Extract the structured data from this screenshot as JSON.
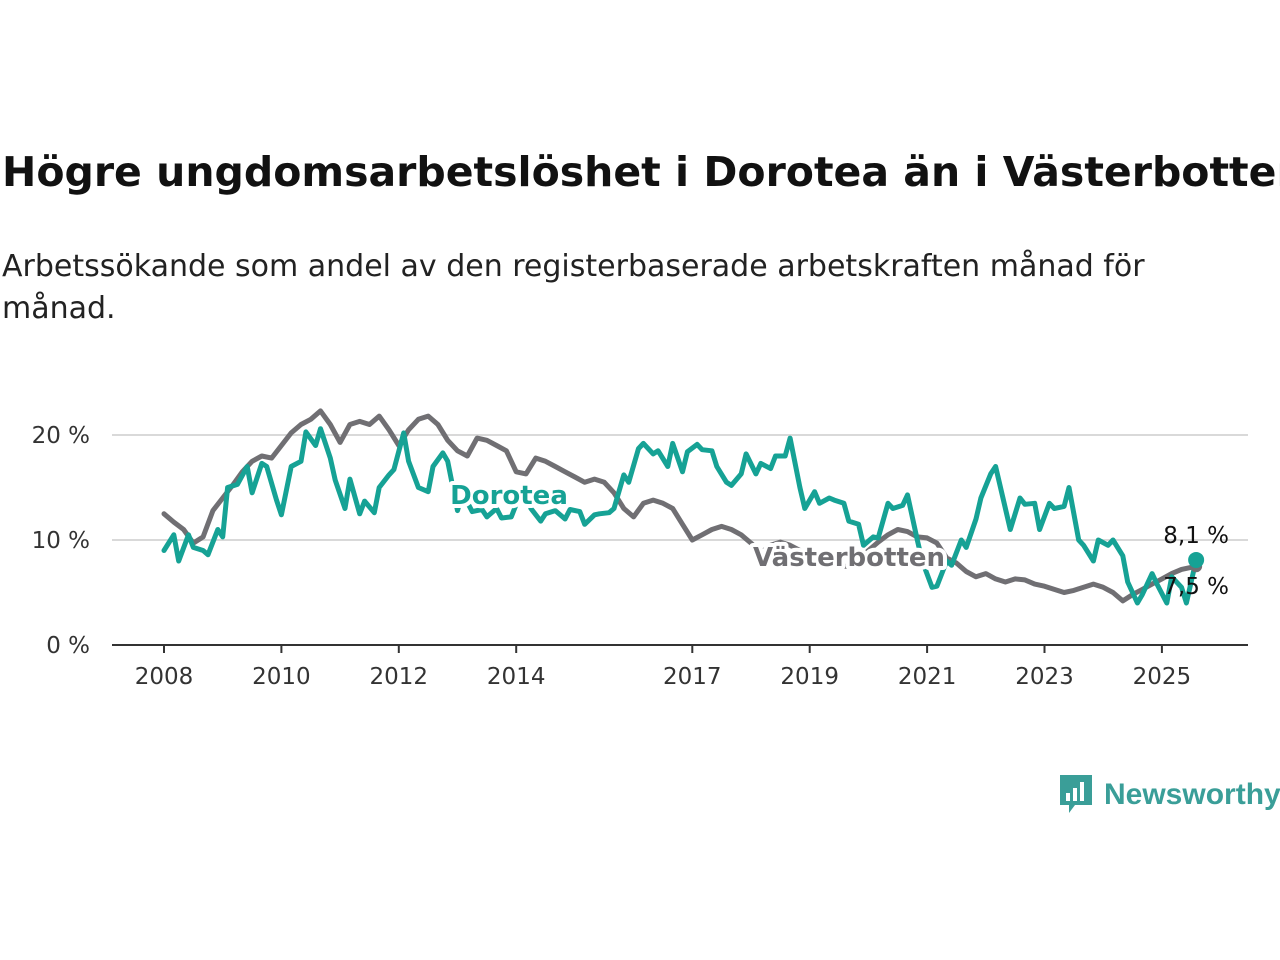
{
  "title": "Högre ungdomsarbetslöshet i Dorotea än i Västerbotten",
  "subtitle": "Arbetssökande som andel av den registerbaserade arbetskraften månad för månad.",
  "logo": {
    "text": "Newsworthy",
    "icon": "newsworthy-chart-bubble-icon",
    "color": "#3a9e98"
  },
  "chart_data": {
    "type": "line",
    "title": "Högre ungdomsarbetslöshet i Dorotea än i Västerbotten",
    "subtitle": "Arbetssökande som andel av den registerbaserade arbetskraften månad för månad.",
    "xlabel": "",
    "ylabel": "",
    "x_range": [
      "2008-01",
      "2025-08"
    ],
    "x_ticks": [
      "2008",
      "2010",
      "2012",
      "2014",
      "2017",
      "2019",
      "2021",
      "2023",
      "2025"
    ],
    "y_ticks": [
      0,
      10,
      20
    ],
    "y_tick_labels": [
      "0 %",
      "10 %",
      "20 %"
    ],
    "ylim": [
      0,
      22
    ],
    "grid": "horizontal",
    "legend": "inline labels",
    "end_labels": {
      "Dorotea": "8,1 %",
      "Västerbotten": "7,5 %"
    },
    "series": [
      {
        "name": "Dorotea",
        "color": "#16a295",
        "values": [
          [
            "2008-01",
            9.0
          ],
          [
            "2008-03",
            10.5
          ],
          [
            "2008-04",
            8.0
          ],
          [
            "2008-06",
            10.5
          ],
          [
            "2008-07",
            9.3
          ],
          [
            "2008-09",
            9.0
          ],
          [
            "2008-10",
            8.6
          ],
          [
            "2008-12",
            11.0
          ],
          [
            "2009-01",
            10.3
          ],
          [
            "2009-02",
            15.0
          ],
          [
            "2009-04",
            15.3
          ],
          [
            "2009-06",
            17.0
          ],
          [
            "2009-07",
            14.5
          ],
          [
            "2009-09",
            17.3
          ],
          [
            "2009-10",
            17.0
          ],
          [
            "2009-12",
            13.8
          ],
          [
            "2010-01",
            12.4
          ],
          [
            "2010-03",
            17.0
          ],
          [
            "2010-05",
            17.5
          ],
          [
            "2010-06",
            20.3
          ],
          [
            "2010-08",
            19.0
          ],
          [
            "2010-09",
            20.6
          ],
          [
            "2010-11",
            17.8
          ],
          [
            "2010-12",
            15.7
          ],
          [
            "2011-02",
            13.0
          ],
          [
            "2011-03",
            15.8
          ],
          [
            "2011-05",
            12.5
          ],
          [
            "2011-06",
            13.7
          ],
          [
            "2011-08",
            12.6
          ],
          [
            "2011-09",
            15.0
          ],
          [
            "2011-11",
            16.2
          ],
          [
            "2011-12",
            16.7
          ],
          [
            "2012-02",
            20.2
          ],
          [
            "2012-03",
            17.5
          ],
          [
            "2012-05",
            15.0
          ],
          [
            "2012-07",
            14.6
          ],
          [
            "2012-08",
            17.0
          ],
          [
            "2012-10",
            18.3
          ],
          [
            "2012-11",
            17.5
          ],
          [
            "2013-01",
            12.8
          ],
          [
            "2013-02",
            14.5
          ],
          [
            "2013-04",
            12.7
          ],
          [
            "2013-06",
            12.9
          ],
          [
            "2013-07",
            12.2
          ],
          [
            "2013-09",
            13.0
          ],
          [
            "2013-10",
            12.1
          ],
          [
            "2013-12",
            12.2
          ],
          [
            "2014-01",
            13.4
          ],
          [
            "2014-03",
            15.0
          ],
          [
            "2014-04",
            13.0
          ],
          [
            "2014-06",
            11.8
          ],
          [
            "2014-07",
            12.5
          ],
          [
            "2014-09",
            12.8
          ],
          [
            "2014-11",
            12.0
          ],
          [
            "2014-12",
            12.9
          ],
          [
            "2015-02",
            12.7
          ],
          [
            "2015-03",
            11.5
          ],
          [
            "2015-05",
            12.4
          ],
          [
            "2015-06",
            12.5
          ],
          [
            "2015-08",
            12.6
          ],
          [
            "2015-09",
            13.0
          ],
          [
            "2015-11",
            16.2
          ],
          [
            "2015-12",
            15.5
          ],
          [
            "2016-02",
            18.7
          ],
          [
            "2016-03",
            19.2
          ],
          [
            "2016-05",
            18.2
          ],
          [
            "2016-06",
            18.5
          ],
          [
            "2016-08",
            17.0
          ],
          [
            "2016-09",
            19.2
          ],
          [
            "2016-11",
            16.5
          ],
          [
            "2016-12",
            18.4
          ],
          [
            "2017-02",
            19.1
          ],
          [
            "2017-03",
            18.6
          ],
          [
            "2017-05",
            18.5
          ],
          [
            "2017-06",
            17.0
          ],
          [
            "2017-08",
            15.5
          ],
          [
            "2017-09",
            15.2
          ],
          [
            "2017-11",
            16.3
          ],
          [
            "2017-12",
            18.2
          ],
          [
            "2018-02",
            16.3
          ],
          [
            "2018-03",
            17.3
          ],
          [
            "2018-05",
            16.8
          ],
          [
            "2018-06",
            18.0
          ],
          [
            "2018-08",
            18.0
          ],
          [
            "2018-09",
            19.7
          ],
          [
            "2018-11",
            15.0
          ],
          [
            "2018-12",
            13.0
          ],
          [
            "2019-02",
            14.6
          ],
          [
            "2019-03",
            13.5
          ],
          [
            "2019-05",
            14.0
          ],
          [
            "2019-06",
            13.8
          ],
          [
            "2019-08",
            13.5
          ],
          [
            "2019-09",
            11.8
          ],
          [
            "2019-11",
            11.5
          ],
          [
            "2019-12",
            9.5
          ],
          [
            "2020-02",
            10.3
          ],
          [
            "2020-03",
            10.2
          ],
          [
            "2020-05",
            13.5
          ],
          [
            "2020-06",
            13.0
          ],
          [
            "2020-08",
            13.3
          ],
          [
            "2020-09",
            14.3
          ],
          [
            "2020-11",
            10.0
          ],
          [
            "2020-12",
            8.0
          ],
          [
            "2021-02",
            5.5
          ],
          [
            "2021-03",
            5.6
          ],
          [
            "2021-05",
            8.0
          ],
          [
            "2021-06",
            7.6
          ],
          [
            "2021-08",
            10.0
          ],
          [
            "2021-09",
            9.3
          ],
          [
            "2021-11",
            12.0
          ],
          [
            "2021-12",
            14.0
          ],
          [
            "2022-02",
            16.3
          ],
          [
            "2022-03",
            17.0
          ],
          [
            "2022-05",
            13.0
          ],
          [
            "2022-06",
            11.0
          ],
          [
            "2022-08",
            14.0
          ],
          [
            "2022-09",
            13.4
          ],
          [
            "2022-11",
            13.5
          ],
          [
            "2022-12",
            11.0
          ],
          [
            "2023-02",
            13.5
          ],
          [
            "2023-03",
            13.0
          ],
          [
            "2023-05",
            13.2
          ],
          [
            "2023-06",
            15.0
          ],
          [
            "2023-08",
            10.0
          ],
          [
            "2023-09",
            9.5
          ],
          [
            "2023-11",
            8.0
          ],
          [
            "2023-12",
            10.0
          ],
          [
            "2024-02",
            9.5
          ],
          [
            "2024-03",
            10.0
          ],
          [
            "2024-05",
            8.5
          ],
          [
            "2024-06",
            6.0
          ],
          [
            "2024-08",
            4.0
          ],
          [
            "2024-09",
            4.8
          ],
          [
            "2024-11",
            6.8
          ],
          [
            "2024-12",
            5.8
          ],
          [
            "2025-02",
            4.0
          ],
          [
            "2025-03",
            6.5
          ],
          [
            "2025-05",
            5.5
          ],
          [
            "2025-06",
            4.0
          ],
          [
            "2025-08",
            8.1
          ]
        ]
      },
      {
        "name": "Västerbotten",
        "color": "#706f73",
        "values": [
          [
            "2008-01",
            12.5
          ],
          [
            "2008-03",
            11.7
          ],
          [
            "2008-05",
            11.0
          ],
          [
            "2008-07",
            9.7
          ],
          [
            "2008-09",
            10.3
          ],
          [
            "2008-11",
            12.8
          ],
          [
            "2009-01",
            14.0
          ],
          [
            "2009-03",
            15.2
          ],
          [
            "2009-05",
            16.5
          ],
          [
            "2009-07",
            17.5
          ],
          [
            "2009-09",
            18.0
          ],
          [
            "2009-11",
            17.8
          ],
          [
            "2010-01",
            19.0
          ],
          [
            "2010-03",
            20.2
          ],
          [
            "2010-05",
            21.0
          ],
          [
            "2010-07",
            21.5
          ],
          [
            "2010-09",
            22.3
          ],
          [
            "2010-11",
            21.0
          ],
          [
            "2011-01",
            19.3
          ],
          [
            "2011-03",
            21.0
          ],
          [
            "2011-05",
            21.3
          ],
          [
            "2011-07",
            21.0
          ],
          [
            "2011-09",
            21.8
          ],
          [
            "2011-11",
            20.5
          ],
          [
            "2012-01",
            19.0
          ],
          [
            "2012-03",
            20.5
          ],
          [
            "2012-05",
            21.5
          ],
          [
            "2012-07",
            21.8
          ],
          [
            "2012-09",
            21.0
          ],
          [
            "2012-11",
            19.5
          ],
          [
            "2013-01",
            18.5
          ],
          [
            "2013-03",
            18.0
          ],
          [
            "2013-05",
            19.7
          ],
          [
            "2013-07",
            19.5
          ],
          [
            "2013-09",
            19.0
          ],
          [
            "2013-11",
            18.5
          ],
          [
            "2014-01",
            16.5
          ],
          [
            "2014-03",
            16.3
          ],
          [
            "2014-05",
            17.8
          ],
          [
            "2014-07",
            17.5
          ],
          [
            "2014-09",
            17.0
          ],
          [
            "2014-11",
            16.5
          ],
          [
            "2015-01",
            16.0
          ],
          [
            "2015-03",
            15.5
          ],
          [
            "2015-05",
            15.8
          ],
          [
            "2015-07",
            15.5
          ],
          [
            "2015-09",
            14.5
          ],
          [
            "2015-11",
            13.0
          ],
          [
            "2016-01",
            12.2
          ],
          [
            "2016-03",
            13.5
          ],
          [
            "2016-05",
            13.8
          ],
          [
            "2016-07",
            13.5
          ],
          [
            "2016-09",
            13.0
          ],
          [
            "2016-11",
            11.5
          ],
          [
            "2017-01",
            10.0
          ],
          [
            "2017-03",
            10.5
          ],
          [
            "2017-05",
            11.0
          ],
          [
            "2017-07",
            11.3
          ],
          [
            "2017-09",
            11.0
          ],
          [
            "2017-11",
            10.5
          ],
          [
            "2018-01",
            9.7
          ],
          [
            "2018-03",
            8.8
          ],
          [
            "2018-05",
            9.5
          ],
          [
            "2018-07",
            9.8
          ],
          [
            "2018-09",
            9.5
          ],
          [
            "2018-11",
            9.0
          ],
          [
            "2019-01",
            8.5
          ],
          [
            "2019-03",
            8.0
          ],
          [
            "2019-05",
            7.8
          ],
          [
            "2019-07",
            7.5
          ],
          [
            "2019-09",
            7.5
          ],
          [
            "2019-11",
            8.0
          ],
          [
            "2020-01",
            9.0
          ],
          [
            "2020-03",
            9.8
          ],
          [
            "2020-05",
            10.5
          ],
          [
            "2020-07",
            11.0
          ],
          [
            "2020-09",
            10.8
          ],
          [
            "2020-11",
            10.3
          ],
          [
            "2021-01",
            10.2
          ],
          [
            "2021-03",
            9.7
          ],
          [
            "2021-05",
            8.3
          ],
          [
            "2021-07",
            7.8
          ],
          [
            "2021-09",
            7.0
          ],
          [
            "2021-11",
            6.5
          ],
          [
            "2022-01",
            6.8
          ],
          [
            "2022-03",
            6.3
          ],
          [
            "2022-05",
            6.0
          ],
          [
            "2022-07",
            6.3
          ],
          [
            "2022-09",
            6.2
          ],
          [
            "2022-11",
            5.8
          ],
          [
            "2023-01",
            5.6
          ],
          [
            "2023-03",
            5.3
          ],
          [
            "2023-05",
            5.0
          ],
          [
            "2023-07",
            5.2
          ],
          [
            "2023-09",
            5.5
          ],
          [
            "2023-11",
            5.8
          ],
          [
            "2024-01",
            5.5
          ],
          [
            "2024-03",
            5.0
          ],
          [
            "2024-05",
            4.2
          ],
          [
            "2024-07",
            4.8
          ],
          [
            "2024-09",
            5.3
          ],
          [
            "2024-11",
            5.8
          ],
          [
            "2025-01",
            6.3
          ],
          [
            "2025-03",
            6.8
          ],
          [
            "2025-05",
            7.2
          ],
          [
            "2025-08",
            7.5
          ]
        ]
      }
    ]
  }
}
